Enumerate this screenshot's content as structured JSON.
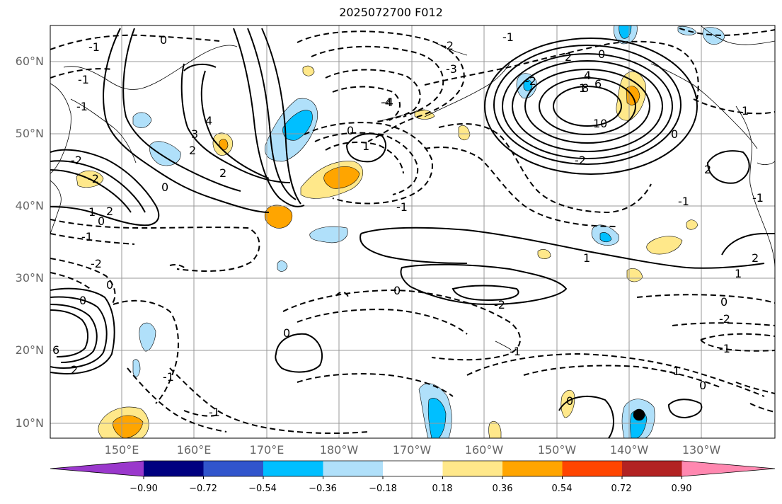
{
  "title": "2025072700 F012",
  "map": {
    "lat_labels": [
      "60°N",
      "50°N",
      "40°N",
      "30°N",
      "20°N",
      "10°N"
    ],
    "lon_labels": [
      "150°E",
      "160°E",
      "170°E",
      "180°W",
      "170°W",
      "160°W",
      "150°W",
      "140°W",
      "130°W"
    ],
    "contour_labels": [
      "1",
      "0",
      "-1",
      "-2",
      "-3",
      "-4",
      "4",
      "2",
      "8",
      "6",
      "10",
      "-2",
      "0",
      "1",
      "2",
      "-1",
      "-1",
      "2",
      "1",
      "-2",
      "-1",
      "0",
      "0",
      "1",
      "-1",
      "0",
      "0",
      "-2",
      "-1",
      "6",
      "2",
      "-1",
      "0",
      "-1",
      "-2",
      "0",
      "-1",
      "-4",
      "0",
      "-1",
      "2",
      "0",
      "1",
      "0",
      "-1",
      "1",
      "2",
      "2",
      "-2",
      "0",
      "-2",
      "-1",
      "0",
      "-1",
      "3",
      "4",
      "-2"
    ]
  },
  "colorbar": {
    "tick_labels": [
      "−0.90",
      "−0.72",
      "−0.54",
      "−0.36",
      "−0.18",
      "0.18",
      "0.36",
      "0.54",
      "0.72",
      "0.90"
    ],
    "colors": [
      "#9a38cc",
      "#000080",
      "#3155cc",
      "#00bfff",
      "#b0e0fa",
      "#ffffff",
      "#ffe88a",
      "#ffa500",
      "#ff4500",
      "#b22222",
      "#ff88b0"
    ]
  }
}
